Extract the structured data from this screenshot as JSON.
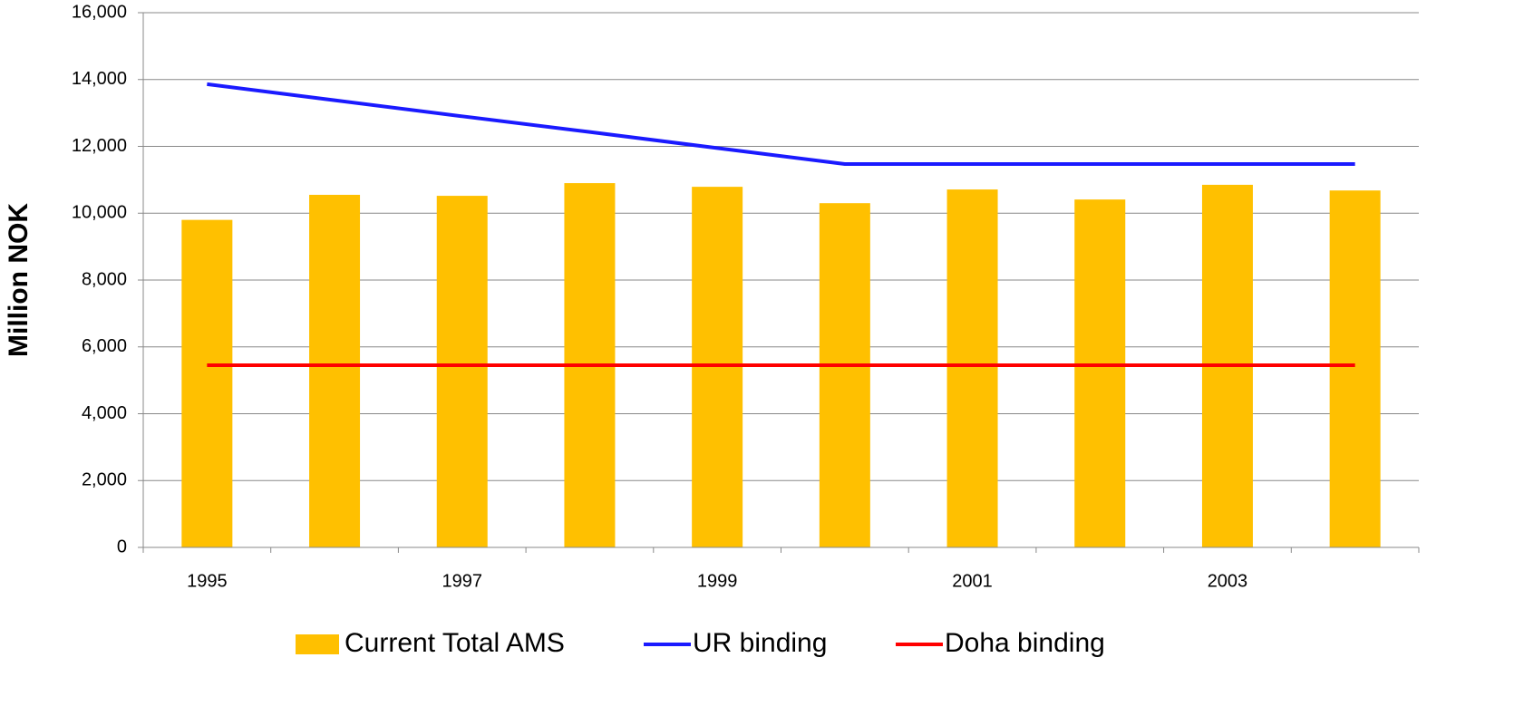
{
  "chart_data": {
    "type": "bar_line",
    "y_label": "Million NOK",
    "categories": [
      "1995",
      null,
      "1997",
      null,
      "1999",
      null,
      "2001",
      null,
      "2003",
      null
    ],
    "series": [
      {
        "name": "Current Total AMS",
        "type": "bar",
        "color": "#ffc000",
        "values": [
          9800,
          10550,
          10520,
          10900,
          10790,
          10300,
          10710,
          10410,
          10850,
          10680
        ]
      },
      {
        "name": "UR binding",
        "type": "line",
        "color": "#1a1aff",
        "values": [
          13860,
          13380,
          12900,
          12430,
          11950,
          11470,
          11470,
          11470,
          11470,
          11470
        ]
      },
      {
        "name": "Doha binding",
        "type": "line",
        "color": "#ff0000",
        "values": [
          5450,
          5450,
          5450,
          5450,
          5450,
          5450,
          5450,
          5450,
          5450,
          5450
        ]
      }
    ],
    "ylim": [
      0,
      16000
    ],
    "yticks": [
      0,
      {
        "value": 2000,
        "label": "2,000"
      },
      {
        "value": 4000,
        "label": "4,000"
      },
      {
        "value": 6000,
        "label": "6,000"
      },
      {
        "value": 8000,
        "label": "8,000"
      },
      {
        "value": 10000,
        "label": "10,000"
      },
      {
        "value": 12000,
        "label": "12,000"
      },
      {
        "value": 14000,
        "label": "14,000"
      },
      {
        "value": 16000,
        "label": "16,000"
      }
    ],
    "grid": true,
    "legend": "bottom"
  }
}
